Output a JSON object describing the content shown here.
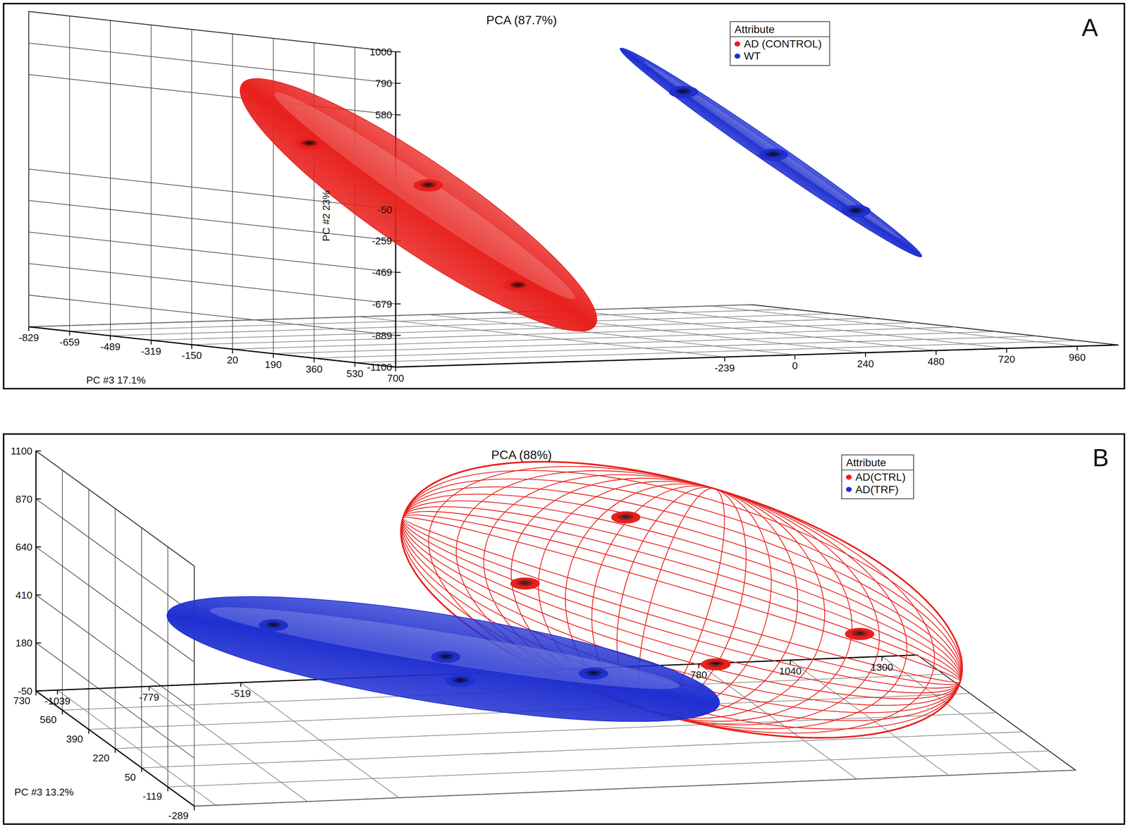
{
  "chart_data": [
    {
      "type": "scatter3d",
      "title": "PCA (87.7%)",
      "y_label": "PC #2 23%",
      "z_label": "PC #3 17.1%",
      "annotations": [
        "A"
      ],
      "legend_title": "Attribute",
      "legend": "top-right",
      "grid": true,
      "xlim": [
        -1358,
        1100
      ],
      "ylim": [
        -1100,
        1000
      ],
      "zlim": [
        -829,
        700
      ],
      "xticks": [
        -239,
        0,
        240,
        480,
        720,
        960
      ],
      "yticks": [
        1000,
        790,
        580,
        -50,
        -259,
        -469,
        -679,
        -889,
        -1100
      ],
      "zticks": [
        -829,
        -659,
        -489,
        -319,
        -150,
        20,
        190,
        360,
        530,
        700
      ],
      "series": [
        {
          "name": "AD (CONTROL)",
          "color": "#e8201c",
          "x": [
            -1325,
            -758,
            -289
          ],
          "y": [
            316,
            -31,
            -761
          ],
          "z": [
            300,
            100,
            -100
          ]
        },
        {
          "name": "WT",
          "color": "#1f2fd0",
          "x": [
            29,
            498,
            942
          ],
          "y": [
            562,
            81,
            -356
          ],
          "z": [
            200,
            0,
            -200
          ]
        }
      ]
    },
    {
      "type": "scatter3d",
      "title": "PCA (88%)",
      "z_label": "PC #3 13.2%",
      "annotations": [
        "B"
      ],
      "legend_title": "Attribute",
      "legend": "top-right",
      "grid": true,
      "xlim": [
        -1100,
        1400
      ],
      "ylim": [
        -50,
        1100
      ],
      "zlim": [
        -289,
        730
      ],
      "xticks": [
        -1039,
        -779,
        -519,
        780,
        1040,
        1300
      ],
      "yticks": [
        1100,
        870,
        640,
        410,
        180,
        -50
      ],
      "zticks": [
        730,
        560,
        390,
        220,
        50,
        -119,
        -289
      ],
      "series": [
        {
          "name": "AD(CTRL)",
          "color": "#e8201c",
          "line_style": "mesh",
          "x": [
            472,
            98,
            1003,
            507
          ],
          "y": [
            798,
            615,
            365,
            362
          ],
          "z": [
            500,
            300,
            200,
            0
          ]
        },
        {
          "name": "AD(TRF)",
          "color": "#1f2fd0",
          "x": [
            -572,
            -171,
            204,
            -174
          ],
          "y": [
            407,
            336,
            285,
            276
          ],
          "z": [
            400,
            200,
            100,
            100
          ]
        }
      ]
    }
  ]
}
